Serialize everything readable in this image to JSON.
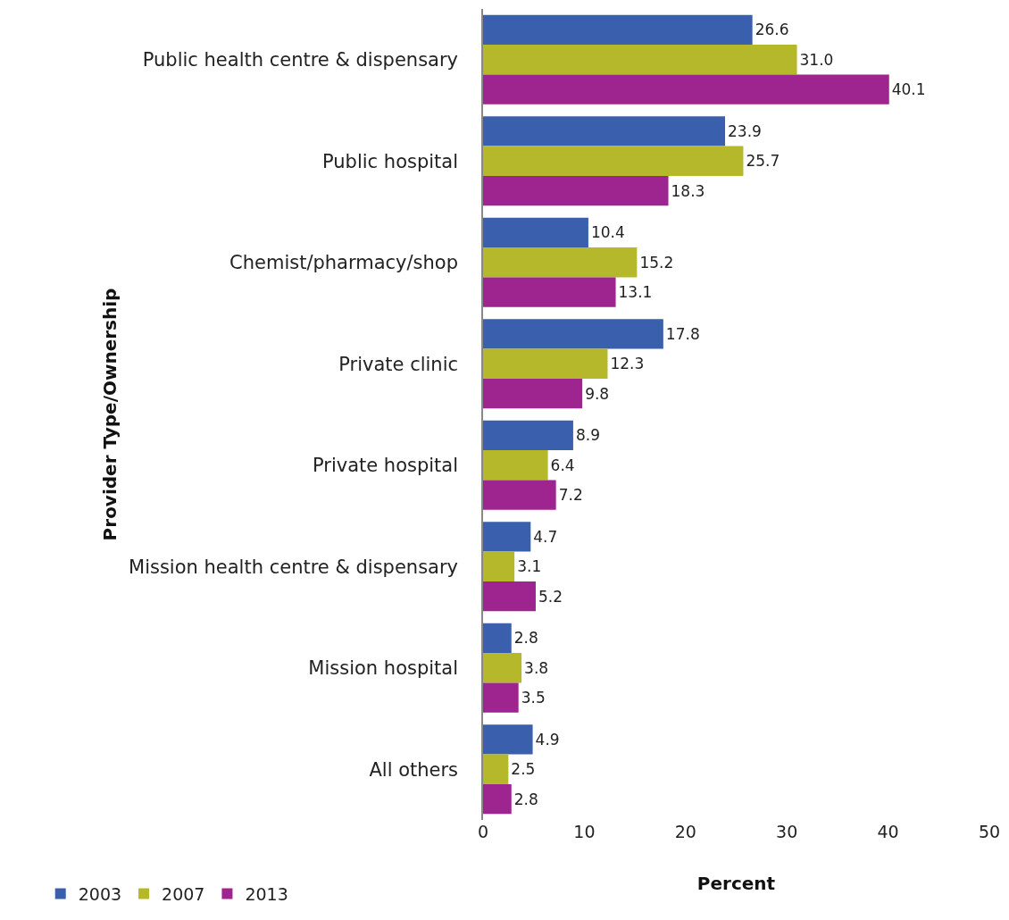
{
  "chart_data": {
    "type": "bar",
    "orientation": "horizontal",
    "xlabel": "Percent",
    "ylabel": "Provider Type/Ownership",
    "categories": [
      "Public health centre & dispensary",
      "Public hospital",
      "Chemist/pharmacy/shop",
      "Private clinic",
      "Private hospital",
      "Mission health centre & dispensary",
      "Mission hospital",
      "All others"
    ],
    "series": [
      {
        "name": "2003",
        "color": "#3a5fad",
        "values": [
          26.6,
          23.9,
          10.4,
          17.8,
          8.9,
          4.7,
          2.8,
          4.9
        ],
        "value_labels": [
          "26.6",
          "23.9",
          "10.4",
          "17.8",
          "8.9",
          "4.7",
          "2.8",
          "4.9"
        ]
      },
      {
        "name": "2007",
        "color": "#b5b82a",
        "values": [
          31.0,
          25.7,
          15.2,
          12.3,
          6.4,
          3.1,
          3.8,
          2.5
        ],
        "value_labels": [
          "31.0",
          "25.7",
          "15.2",
          "12.3",
          "6.4",
          "3.1",
          "3.8",
          "2.5"
        ]
      },
      {
        "name": "2013",
        "color": "#9e2590",
        "values": [
          40.1,
          18.3,
          13.1,
          9.8,
          7.2,
          5.2,
          3.5,
          2.8
        ],
        "value_labels": [
          "40.1",
          "18.3",
          "13.1",
          "9.8",
          "7.2",
          "5.2",
          "3.5",
          "2.8"
        ]
      }
    ],
    "xlim": [
      0,
      50
    ],
    "xticks": [
      0,
      10,
      20,
      30,
      40,
      50
    ],
    "grid": false,
    "legend": "bottom left"
  }
}
